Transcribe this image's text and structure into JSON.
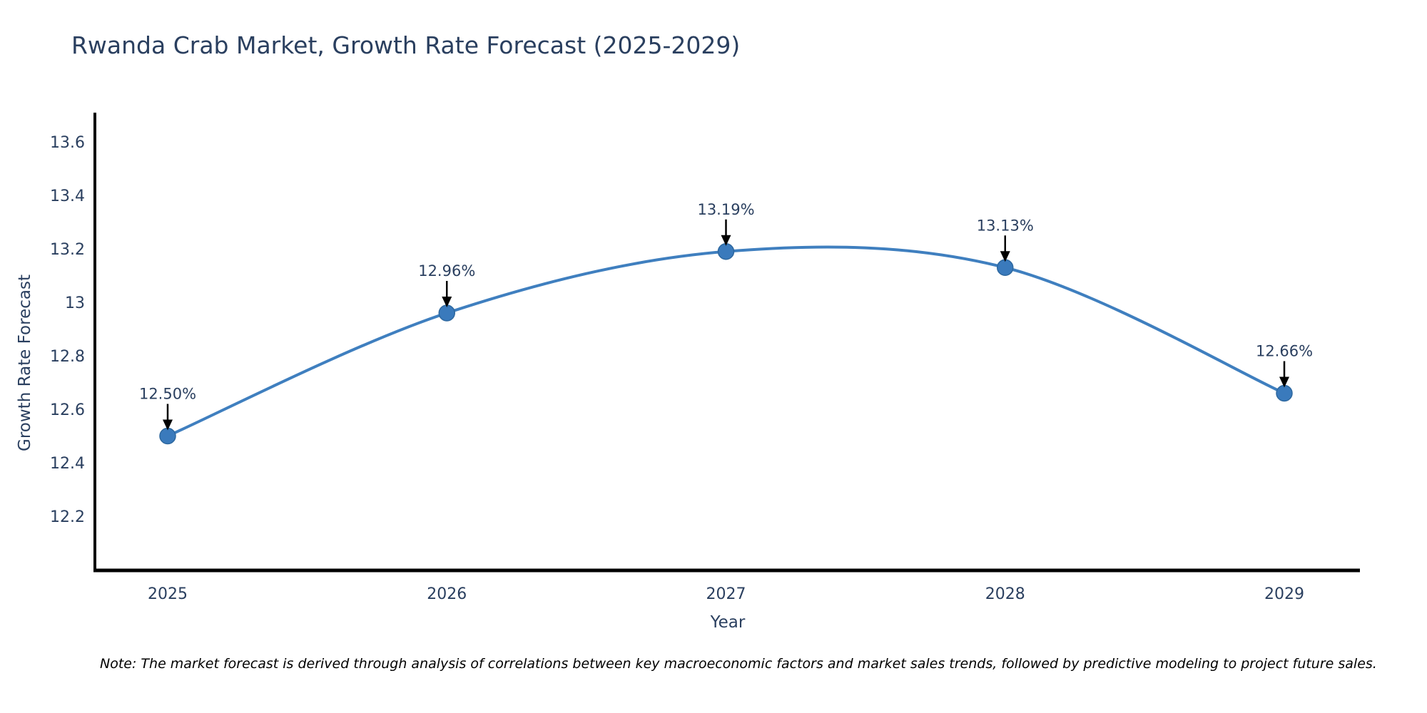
{
  "page": {
    "note": "Note: The market forecast is derived through analysis of correlations between key macroeconomic factors and market sales trends, followed by predictive modeling to project future sales."
  },
  "chart_data": {
    "type": "line",
    "title": "Rwanda Crab Market, Growth Rate Forecast (2025-2029)",
    "x": [
      2025,
      2026,
      2027,
      2028,
      2029
    ],
    "series": [
      {
        "name": "Growth Rate Forecast",
        "values": [
          12.5,
          12.96,
          13.19,
          13.13,
          12.66
        ]
      }
    ],
    "point_labels": [
      "12.50%",
      "12.96%",
      "13.19%",
      "13.13%",
      "12.66%"
    ],
    "xlabel": "Year",
    "ylabel": "Growth Rate Forecast",
    "x_tick_labels": [
      "2025",
      "2026",
      "2027",
      "2028",
      "2029"
    ],
    "y_tick_labels": [
      "13.6",
      "13.4",
      "13.2",
      "13",
      "12.8",
      "12.6",
      "12.4",
      "12.2"
    ],
    "ylim": [
      12.0,
      13.7
    ],
    "grid": false,
    "legend_position": "none",
    "line_shape": "spline",
    "colors": {
      "line": "#3f7fbf",
      "marker": "#3a7abc",
      "marker_edge": "#2e689f",
      "axis": "#000000",
      "tick_text": "#2a3f5f",
      "annotation_text": "#2a3f5f",
      "annotation_arrow": "#000000",
      "background": "#ffffff"
    }
  }
}
